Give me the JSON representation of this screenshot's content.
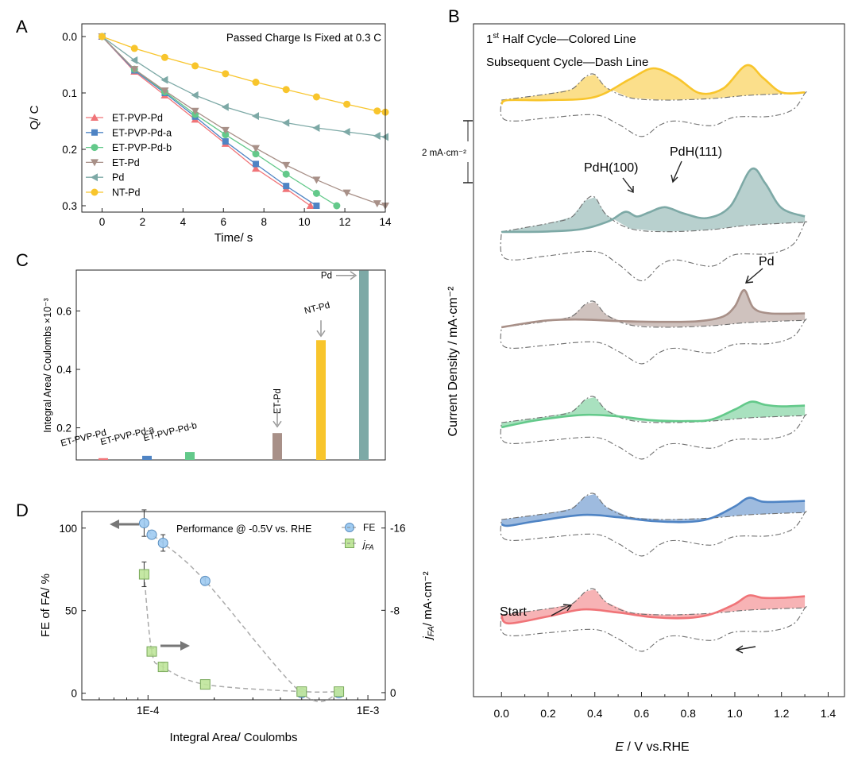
{
  "colors": {
    "red": "#f07478",
    "blue": "#4f84c4",
    "green": "#63c98a",
    "brown": "#a89088",
    "teal": "#7da9a6",
    "yellow": "#f8c52c",
    "dash": "#6f6f6f",
    "axis": "#222222"
  },
  "panel_labels": {
    "a": "A",
    "b": "B",
    "c": "C",
    "d": "D"
  },
  "chart_data": [
    {
      "id": "A",
      "type": "line",
      "title": "Passed Charge Is Fixed at 0.3 C",
      "xlabel": "Time/ s",
      "ylabel": "Q/ C",
      "xlim": [
        -1,
        14
      ],
      "ylim": [
        0,
        0.31
      ],
      "y_inverted": true,
      "xticks": [
        0,
        2,
        4,
        6,
        8,
        10,
        12,
        14
      ],
      "yticks": [
        0.0,
        0.1,
        0.2,
        0.3
      ],
      "ytick_labels": [
        "0.0",
        "0.1",
        "0.2",
        "0.3"
      ],
      "legend_position": "left",
      "series": [
        {
          "name": "ET-PVP-Pd",
          "color": "#f07478",
          "marker": "triangle-up",
          "x": [
            0,
            1.6,
            3.1,
            4.6,
            6.1,
            7.6,
            9.1,
            10.3
          ],
          "y": [
            0,
            0.062,
            0.104,
            0.147,
            0.19,
            0.234,
            0.27,
            0.3
          ]
        },
        {
          "name": "ET-PVP-Pd-a",
          "color": "#4f84c4",
          "marker": "square",
          "x": [
            0,
            1.6,
            3.1,
            4.6,
            6.1,
            7.6,
            9.1,
            10.6
          ],
          "y": [
            0,
            0.06,
            0.1,
            0.142,
            0.186,
            0.226,
            0.265,
            0.3
          ]
        },
        {
          "name": "ET-PVP-Pd-b",
          "color": "#63c98a",
          "marker": "circle",
          "x": [
            0,
            1.6,
            3.1,
            4.6,
            6.1,
            7.6,
            9.1,
            10.6,
            11.6
          ],
          "y": [
            0,
            0.058,
            0.098,
            0.138,
            0.174,
            0.208,
            0.244,
            0.278,
            0.3
          ]
        },
        {
          "name": "ET-Pd",
          "color": "#a89088",
          "marker": "triangle-down",
          "x": [
            0,
            1.6,
            3.1,
            4.6,
            6.1,
            7.6,
            9.1,
            10.6,
            12.1,
            13.6,
            14
          ],
          "y": [
            0,
            0.058,
            0.096,
            0.132,
            0.166,
            0.198,
            0.228,
            0.254,
            0.277,
            0.296,
            0.3
          ]
        },
        {
          "name": "Pd",
          "color": "#7da9a6",
          "marker": "triangle-left",
          "x": [
            0,
            1.6,
            3.1,
            4.6,
            6.1,
            7.6,
            9.1,
            10.6,
            12.1,
            13.6,
            14
          ],
          "y": [
            0,
            0.042,
            0.077,
            0.104,
            0.125,
            0.141,
            0.153,
            0.162,
            0.169,
            0.176,
            0.178
          ]
        },
        {
          "name": "NT-Pd",
          "color": "#f8c52c",
          "marker": "circle",
          "x": [
            0,
            1.6,
            3.1,
            4.6,
            6.1,
            7.6,
            9.1,
            10.6,
            12.1,
            13.6,
            14
          ],
          "y": [
            0,
            0.021,
            0.037,
            0.052,
            0.066,
            0.081,
            0.094,
            0.107,
            0.12,
            0.132,
            0.134
          ]
        }
      ]
    },
    {
      "id": "C",
      "type": "bar",
      "ylabel": "Integral Area/ Coulombs ×10⁻³",
      "ylim": [
        0.09,
        0.74
      ],
      "yticks": [
        0.2,
        0.4,
        0.6
      ],
      "ytick_labels": [
        "0.2",
        "0.4",
        "0.6"
      ],
      "categories": [
        "ET-PVP-Pd",
        "ET-PVP-Pd-a",
        "ET-PVP-Pd-b",
        "ET-Pd",
        "NT-Pd",
        "Pd"
      ],
      "values": [
        0.096,
        0.104,
        0.117,
        0.182,
        0.5,
        0.738
      ],
      "colors": [
        "#f07478",
        "#4f84c4",
        "#63c98a",
        "#a89088",
        "#f8c52c",
        "#7da9a6"
      ],
      "arrow_labels": [
        "ET-Pd",
        "NT-Pd",
        "Pd"
      ]
    },
    {
      "id": "D",
      "type": "scatter",
      "title": "Performance @ -0.5V vs. RHE",
      "xlabel": "Integral Area/ Coulombs",
      "ylabel_left": "FE of FA/ %",
      "ylabel_right_main": "j",
      "ylabel_right_sub": "FA",
      "ylabel_right_rest": "/ mA·cm⁻²",
      "x_scale": "log",
      "xlim": [
        5e-05,
        0.0012
      ],
      "xticks": [
        0.0001,
        0.001
      ],
      "xtick_labels": [
        "1E-4",
        "1E-3"
      ],
      "ylim_left": [
        -4,
        110
      ],
      "yticks_left": [
        0,
        50,
        100
      ],
      "ylim_right": [
        0.7,
        -17.6
      ],
      "yticks_right": [
        0,
        -8,
        -16
      ],
      "ytick_labels_right": [
        "0",
        "-8",
        "-16"
      ],
      "series": [
        {
          "name": "FE",
          "color": "#9ecbf2",
          "axis": "left",
          "x": [
            9.6e-05,
            0.000104,
            0.000117,
            0.000182,
            0.0005,
            0.000738
          ],
          "y": [
            103,
            96,
            91,
            68,
            0,
            0
          ],
          "err": [
            8,
            0,
            5,
            2,
            0,
            0
          ]
        },
        {
          "name": "j",
          "name_sub": "FA",
          "color": "#bfe59a",
          "axis": "right",
          "x": [
            9.6e-05,
            0.000104,
            0.000117,
            0.000182,
            0.0005,
            0.000738
          ],
          "y": [
            -11.5,
            -4.0,
            -2.5,
            -0.8,
            -0.1,
            -0.1
          ],
          "err": [
            1.2,
            0.3,
            0.4,
            0,
            0,
            0
          ]
        }
      ]
    },
    {
      "id": "B",
      "type": "line",
      "xlabel_main": "E",
      "xlabel_rest": " / V vs.RHE",
      "ylabel": "Current Density / mA·cm⁻²",
      "xlim": [
        -0.12,
        1.47
      ],
      "xticks": [
        0.0,
        0.2,
        0.4,
        0.6,
        0.8,
        1.0,
        1.2,
        1.4
      ],
      "xtick_labels": [
        "0.0",
        "0.2",
        "0.4",
        "0.6",
        "0.8",
        "1.0",
        "1.2",
        "1.4"
      ],
      "legend_line1_pre": "1",
      "legend_line1_sup": "st",
      "legend_line1_rest": " Half Cycle—Colored Line",
      "legend_line2": "Subsequent Cycle—Dash Line",
      "scale_bar_label": "2 mA·cm⁻²",
      "annotations": [
        "PdH(100)",
        "PdH(111)",
        "Pd",
        "Start"
      ],
      "series": [
        {
          "name": "NT-Pd",
          "color": "#f8c52c",
          "anodic_x": [
            0,
            0.03,
            0.2,
            0.4,
            0.55,
            0.65,
            0.75,
            0.85,
            0.95,
            1.05,
            1.12,
            1.2,
            1.3
          ],
          "anodic_y": [
            -0.2,
            0.05,
            0.05,
            0.25,
            1.4,
            2.1,
            1.5,
            0.5,
            0.8,
            2.3,
            1.5,
            0.55,
            0.55
          ]
        },
        {
          "name": "Pd",
          "color": "#7da9a6",
          "anodic_x": [
            0,
            0.2,
            0.35,
            0.46,
            0.53,
            0.58,
            0.63,
            0.7,
            0.78,
            0.88,
            0.98,
            1.07,
            1.13,
            1.2,
            1.3
          ],
          "anodic_y": [
            0.05,
            0.08,
            0.25,
            0.75,
            1.35,
            1.05,
            1.3,
            1.65,
            1.25,
            0.95,
            1.7,
            4.1,
            3.2,
            1.6,
            1.05
          ]
        },
        {
          "name": "ET-Pd",
          "color": "#a89088",
          "anodic_x": [
            0,
            0.1,
            0.2,
            0.35,
            0.5,
            0.7,
            0.85,
            0.95,
            1.0,
            1.04,
            1.08,
            1.15,
            1.3
          ],
          "anodic_y": [
            0.05,
            0.3,
            0.5,
            0.55,
            0.45,
            0.4,
            0.45,
            0.75,
            1.4,
            2.45,
            1.3,
            0.95,
            0.95
          ]
        },
        {
          "name": "ET-PVP-Pd-b",
          "color": "#63c98a",
          "anodic_x": [
            0,
            0.15,
            0.35,
            0.5,
            0.65,
            0.8,
            0.9,
            1.0,
            1.07,
            1.13,
            1.2,
            1.3
          ],
          "anodic_y": [
            -0.25,
            0.2,
            0.55,
            0.45,
            0.2,
            0.15,
            0.25,
            0.9,
            1.4,
            1.2,
            1.1,
            1.15
          ]
        },
        {
          "name": "ET-PVP-Pd-a",
          "color": "#4f84c4",
          "anodic_x": [
            0,
            0.03,
            0.15,
            0.35,
            0.5,
            0.65,
            0.8,
            0.9,
            1.0,
            1.06,
            1.12,
            1.2,
            1.3
          ],
          "anodic_y": [
            -0.25,
            -0.35,
            -0.05,
            0.35,
            0.2,
            -0.05,
            -0.1,
            0.15,
            0.9,
            1.45,
            1.2,
            1.2,
            1.25
          ]
        },
        {
          "name": "ET-PVP-Pd",
          "color": "#f07478",
          "anodic_x": [
            0,
            0.03,
            0.2,
            0.35,
            0.5,
            0.65,
            0.8,
            0.9,
            1.0,
            1.06,
            1.12,
            1.2,
            1.3
          ],
          "anodic_y": [
            0.05,
            -0.5,
            -0.05,
            0.4,
            0.2,
            -0.1,
            -0.15,
            0.1,
            0.75,
            1.3,
            1.15,
            1.15,
            1.25
          ]
        }
      ]
    }
  ]
}
